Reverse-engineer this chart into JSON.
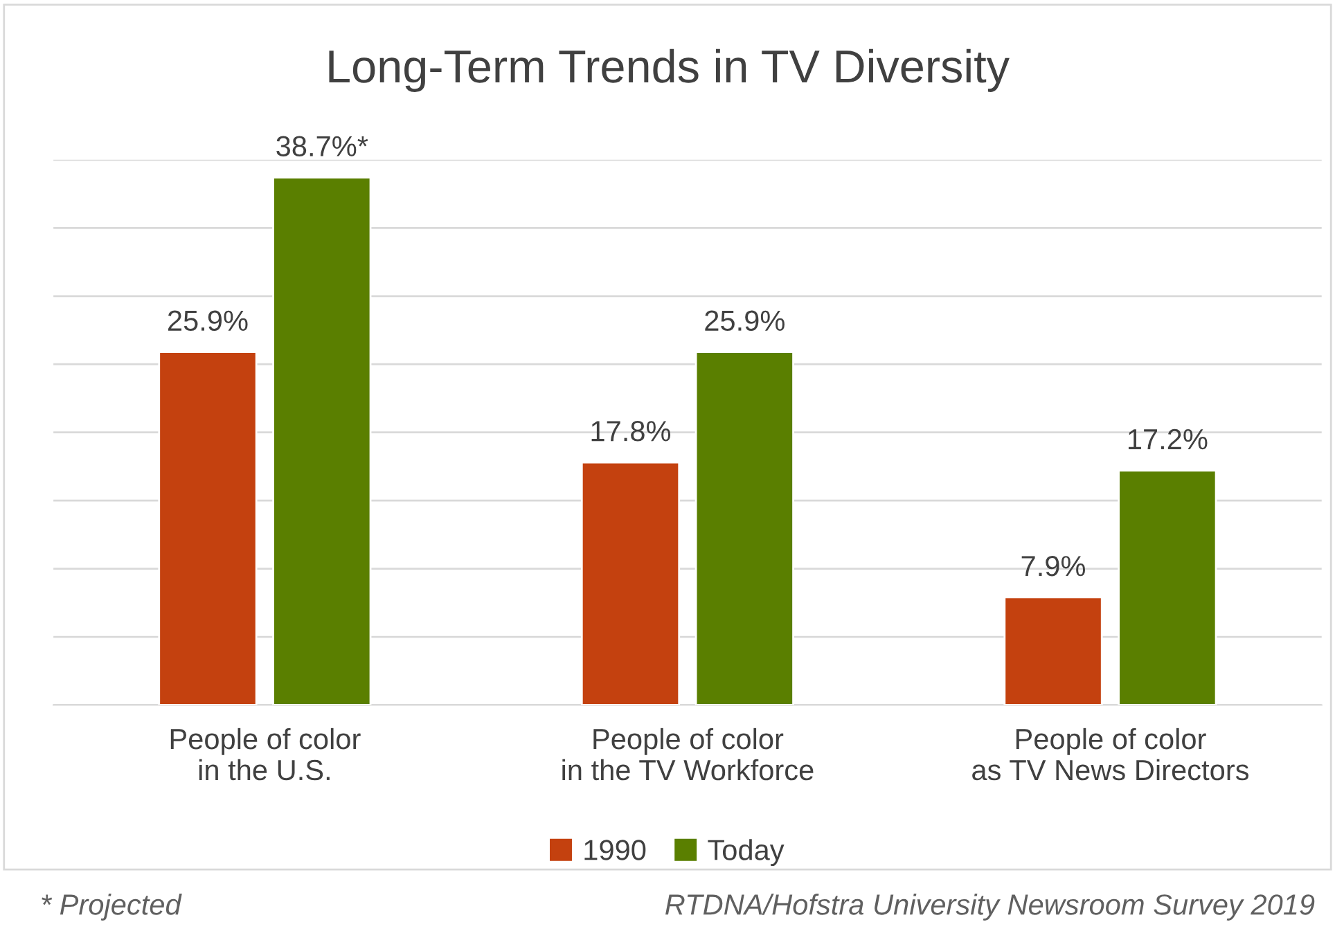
{
  "chart_data": {
    "type": "bar",
    "title": "Long-Term Trends in TV Diversity",
    "categories": [
      "People of color\nin the U.S.",
      "People of color\nin the TV Workforce",
      "People of color\nas TV News Directors"
    ],
    "series": [
      {
        "name": "1990",
        "color": "#c4410f",
        "values": [
          25.9,
          17.8,
          7.9
        ],
        "value_labels": [
          "25.9%",
          "17.8%",
          "7.9%"
        ]
      },
      {
        "name": "Today",
        "color": "#5a7f00",
        "values": [
          38.7,
          25.9,
          17.2
        ],
        "value_labels": [
          "38.7%*",
          "25.9%",
          "17.2%"
        ]
      }
    ],
    "ylim": [
      0,
      40
    ],
    "yticks": [
      {
        "value": 0,
        "label": null
      },
      {
        "value": 5,
        "label": null
      },
      {
        "value": 10,
        "label": null
      },
      {
        "value": 15,
        "label": null
      },
      {
        "value": 20,
        "label": null
      },
      {
        "value": 25,
        "label": null
      },
      {
        "value": 30,
        "label": null
      },
      {
        "value": 35,
        "label": null
      },
      {
        "value": 40,
        "label": null
      }
    ],
    "tick_labels": "x",
    "grid": "y",
    "legend": "bottom",
    "annotations": [
      "* Projected",
      "RTDNA/Hofstra University Newsroom Survey 2019"
    ]
  }
}
